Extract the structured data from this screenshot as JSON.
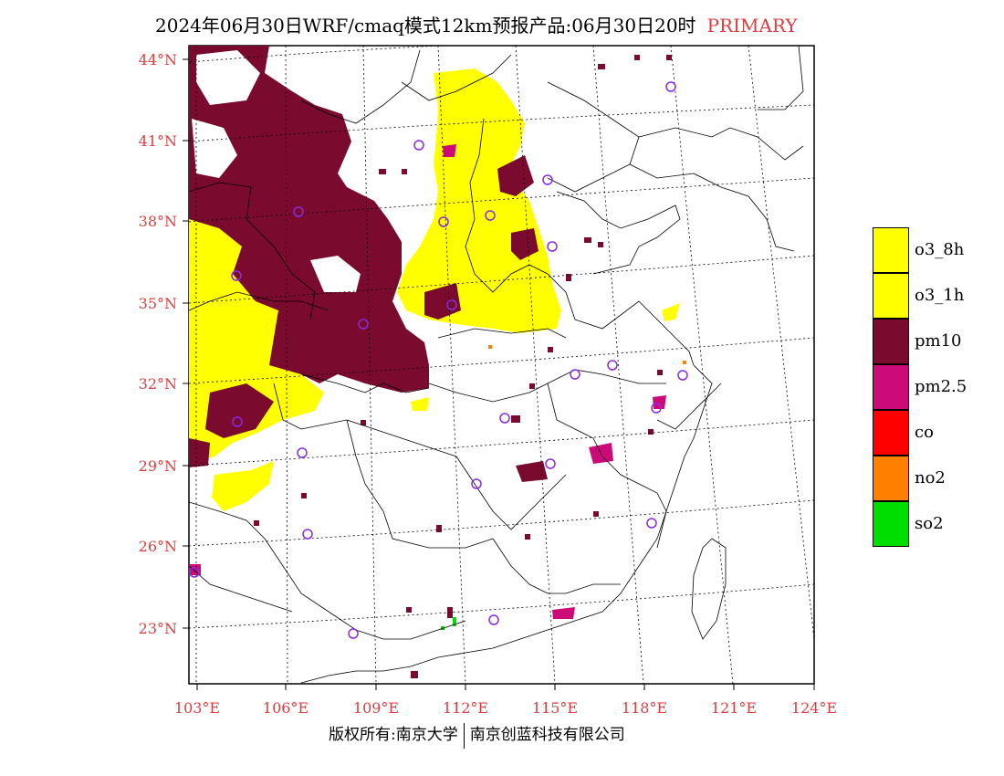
{
  "title": {
    "main": "2024年06月30日WRF/cmaq模式12km预报产品:06月30日20时",
    "tag": "PRIMARY"
  },
  "lat_labels": [
    "44°N",
    "41°N",
    "38°N",
    "35°N",
    "32°N",
    "29°N",
    "26°N",
    "23°N"
  ],
  "lon_labels": [
    "103°E",
    "106°E",
    "109°E",
    "112°E",
    "115°E",
    "118°E",
    "121°E",
    "124°E"
  ],
  "legend": [
    {
      "label": "o3_8h",
      "color": "#ffff00"
    },
    {
      "label": "o3_1h",
      "color": "#ffff00"
    },
    {
      "label": "pm10",
      "color": "#7a0a2e"
    },
    {
      "label": "pm2.5",
      "color": "#cc0a78"
    },
    {
      "label": "co",
      "color": "#ff0000"
    },
    {
      "label": "no2",
      "color": "#ff8000"
    },
    {
      "label": "so2",
      "color": "#00dd00"
    }
  ],
  "footer": {
    "left": "版权所有:南京大学",
    "right": "南京创蓝科技有限公司"
  },
  "colors": {
    "accent": "#e03c3c",
    "pm10": "#7a0a2e",
    "pm25": "#cc0a78",
    "o3": "#ffff00",
    "station": "#8a2be2"
  }
}
